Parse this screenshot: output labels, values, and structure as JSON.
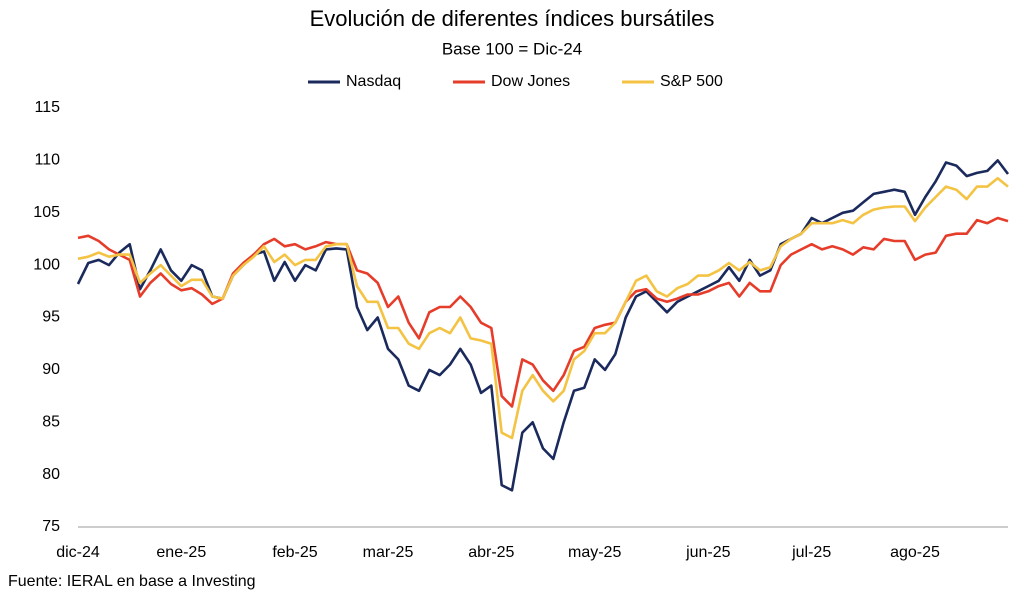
{
  "chart_data": {
    "type": "line",
    "title": "Evolución de diferentes índices bursátiles",
    "subtitle": "Base 100 = Dic-24",
    "source": "Fuente: IERAL en base a Investing",
    "categories": [
      "dic-24",
      null,
      null,
      null,
      null,
      null,
      null,
      null,
      null,
      null,
      "ene-25",
      null,
      null,
      null,
      null,
      null,
      null,
      null,
      null,
      null,
      null,
      "feb-25",
      null,
      null,
      null,
      null,
      null,
      null,
      null,
      null,
      "mar-25",
      null,
      null,
      null,
      null,
      null,
      null,
      null,
      null,
      null,
      "abr-25",
      null,
      null,
      null,
      null,
      null,
      null,
      null,
      null,
      null,
      "may-25",
      null,
      null,
      null,
      null,
      null,
      null,
      null,
      null,
      null,
      null,
      "jun-25",
      null,
      null,
      null,
      null,
      null,
      null,
      null,
      null,
      null,
      "jul-25",
      null,
      null,
      null,
      null,
      null,
      null,
      null,
      null,
      null,
      "ago-25",
      null,
      null,
      null,
      null,
      null,
      null,
      null,
      null,
      null
    ],
    "series": [
      {
        "name": "Nasdaq",
        "color": "#1b2a5c",
        "values": [
          98.2,
          100.2,
          100.5,
          100.0,
          101.2,
          102.0,
          97.7,
          99.5,
          101.5,
          99.5,
          98.5,
          100.0,
          99.5,
          97.0,
          96.8,
          99.0,
          100.0,
          101.0,
          101.3,
          98.5,
          100.3,
          98.5,
          100.0,
          99.5,
          101.5,
          101.6,
          101.5,
          96.0,
          93.8,
          95.0,
          92.0,
          91.0,
          88.5,
          88.0,
          90.0,
          89.5,
          90.5,
          92.0,
          90.5,
          87.8,
          88.5,
          79.0,
          78.5,
          84.0,
          85.0,
          82.5,
          81.5,
          85.0,
          88.0,
          88.3,
          91.0,
          90.0,
          91.5,
          95.0,
          97.0,
          97.5,
          96.5,
          95.5,
          96.5,
          97.0,
          97.5,
          98.0,
          98.5,
          99.8,
          98.5,
          100.5,
          99.0,
          99.5,
          102.0,
          102.5,
          103.0,
          104.5,
          104.0,
          104.5,
          105.0,
          105.2,
          106.0,
          106.8,
          107.0,
          107.2,
          107.0,
          104.8,
          106.5,
          108.0,
          109.8,
          109.5,
          108.5,
          108.8,
          109.0,
          110.0,
          108.7
        ]
      },
      {
        "name": "Dow Jones",
        "color": "#e63d2b",
        "values": [
          102.6,
          102.8,
          102.3,
          101.5,
          101.0,
          100.5,
          97.0,
          98.3,
          99.2,
          98.2,
          97.6,
          97.8,
          97.2,
          96.3,
          96.8,
          99.2,
          100.2,
          101.0,
          102.0,
          102.5,
          101.8,
          102.0,
          101.5,
          101.8,
          102.2,
          102.0,
          102.0,
          99.5,
          99.2,
          98.3,
          96.0,
          97.0,
          94.5,
          93.0,
          95.5,
          96.0,
          96.0,
          97.0,
          96.0,
          94.5,
          94.0,
          87.5,
          86.5,
          91.0,
          90.5,
          89.0,
          88.0,
          89.5,
          91.8,
          92.2,
          94.0,
          94.3,
          94.5,
          96.5,
          97.5,
          97.7,
          96.8,
          96.5,
          96.8,
          97.2,
          97.2,
          97.5,
          98.0,
          98.3,
          97.0,
          98.3,
          97.5,
          97.5,
          100.0,
          101.0,
          101.5,
          102.0,
          101.5,
          101.8,
          101.5,
          101.0,
          101.7,
          101.5,
          102.5,
          102.3,
          102.3,
          100.5,
          101.0,
          101.2,
          102.8,
          103.0,
          103.0,
          104.3,
          104.0,
          104.5,
          104.2
        ]
      },
      {
        "name": "S&P 500",
        "color": "#f4c343",
        "values": [
          100.6,
          100.8,
          101.2,
          100.8,
          101.0,
          101.0,
          98.3,
          99.2,
          100.0,
          99.0,
          98.0,
          98.6,
          98.6,
          97.0,
          96.8,
          99.0,
          100.0,
          100.8,
          101.8,
          100.3,
          101.0,
          100.0,
          100.5,
          100.5,
          101.8,
          102.0,
          102.0,
          98.0,
          96.5,
          96.5,
          94.0,
          94.0,
          92.5,
          92.0,
          93.5,
          94.0,
          93.5,
          95.0,
          93.0,
          92.8,
          92.5,
          84.0,
          83.5,
          88.0,
          89.5,
          88.0,
          87.0,
          88.0,
          91.0,
          91.8,
          93.5,
          93.5,
          94.5,
          96.5,
          98.5,
          99.0,
          97.5,
          97.0,
          97.8,
          98.2,
          99.0,
          99.0,
          99.5,
          100.2,
          99.5,
          100.3,
          99.5,
          99.8,
          101.8,
          102.5,
          103.0,
          104.0,
          104.0,
          104.0,
          104.3,
          104.0,
          104.8,
          105.3,
          105.5,
          105.6,
          105.6,
          104.2,
          105.5,
          106.5,
          107.5,
          107.2,
          106.3,
          107.5,
          107.5,
          108.3,
          107.5
        ]
      }
    ],
    "ylim": [
      75,
      115
    ],
    "yticks": [
      75,
      80,
      85,
      90,
      95,
      100,
      105,
      110,
      115
    ],
    "grid": false
  }
}
